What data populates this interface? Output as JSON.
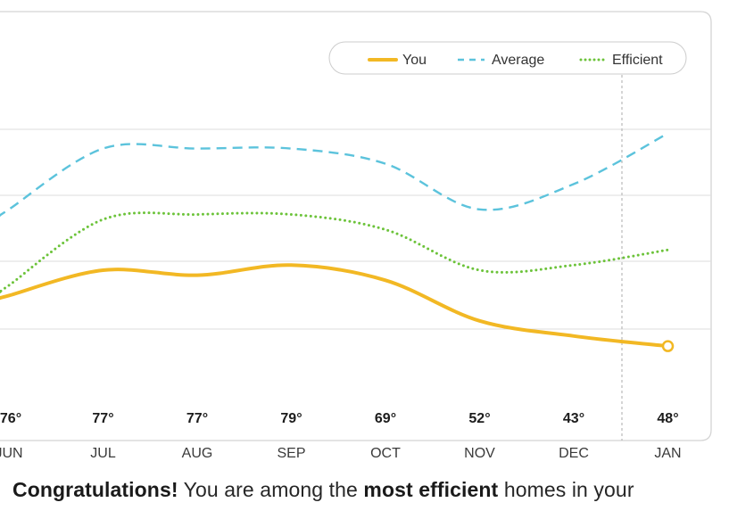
{
  "chart_data": {
    "type": "line",
    "categories": [
      "JUN",
      "JUL",
      "AUG",
      "SEP",
      "OCT",
      "NOV",
      "DEC",
      "JAN"
    ],
    "temperatures": [
      "76°",
      "77°",
      "77°",
      "79°",
      "69°",
      "52°",
      "43°",
      "48°"
    ],
    "series": [
      {
        "name": "You",
        "style": "solid",
        "color": "#f2b824",
        "values": [
          1.4,
          1.9,
          1.8,
          2.0,
          1.7,
          0.9,
          0.6,
          0.4
        ]
      },
      {
        "name": "Average",
        "style": "dashed",
        "color": "#5cc3dc",
        "values": [
          3.1,
          4.3,
          4.3,
          4.3,
          4.0,
          3.1,
          3.6,
          4.6
        ]
      },
      {
        "name": "Efficient",
        "style": "dotted",
        "color": "#6cc33a",
        "values": [
          1.6,
          2.9,
          3.0,
          3.0,
          2.7,
          1.9,
          2.0,
          2.3
        ]
      }
    ],
    "ylim": [
      -0.6,
      6.0
    ],
    "grid": true,
    "legend_position": "top-right"
  },
  "footer": {
    "word1": "Congratulations!",
    "text1": " You are among the ",
    "word2": "most efficient",
    "text2": " homes in your"
  }
}
